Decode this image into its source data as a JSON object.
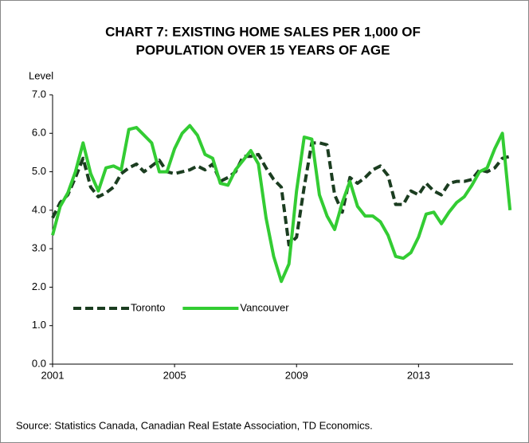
{
  "chart_data": {
    "type": "line",
    "title": [
      "CHART 7: EXISTING HOME SALES PER 1,000 OF",
      "POPULATION OVER 15 YEARS OF AGE"
    ],
    "ylabel": "Level",
    "source": "Source: Statistics Canada, Canadian Real Estate Association, TD Economics.",
    "x": [
      2001,
      2001.25,
      2001.5,
      2001.75,
      2002,
      2002.25,
      2002.5,
      2002.75,
      2003,
      2003.25,
      2003.5,
      2003.75,
      2004,
      2004.25,
      2004.5,
      2004.75,
      2005,
      2005.25,
      2005.5,
      2005.75,
      2006,
      2006.25,
      2006.5,
      2006.75,
      2007,
      2007.25,
      2007.5,
      2007.75,
      2008,
      2008.25,
      2008.5,
      2008.75,
      2009,
      2009.25,
      2009.5,
      2009.75,
      2010,
      2010.25,
      2010.5,
      2010.75,
      2011,
      2011.25,
      2011.5,
      2011.75,
      2012,
      2012.25,
      2012.5,
      2012.75,
      2013,
      2013.25,
      2013.5,
      2013.75,
      2014,
      2014.25,
      2014.5,
      2014.75,
      2015,
      2015.25,
      2015.5,
      2015.75,
      2016
    ],
    "series": [
      {
        "name": "Toronto",
        "color": "#1b3d20",
        "dash": true,
        "values": [
          3.8,
          4.2,
          4.4,
          4.85,
          5.35,
          4.6,
          4.35,
          4.45,
          4.6,
          4.95,
          5.1,
          5.2,
          5.0,
          5.15,
          5.3,
          5.0,
          4.95,
          5.0,
          5.05,
          5.15,
          5.05,
          5.2,
          4.75,
          4.85,
          5.0,
          5.4,
          5.4,
          5.45,
          5.1,
          4.8,
          4.6,
          3.1,
          3.3,
          4.6,
          5.75,
          5.75,
          5.7,
          4.4,
          3.95,
          4.85,
          4.7,
          4.85,
          5.05,
          5.15,
          4.9,
          4.15,
          4.15,
          4.5,
          4.4,
          4.7,
          4.5,
          4.4,
          4.7,
          4.75,
          4.75,
          4.8,
          5.05,
          5.0,
          5.1,
          5.35,
          5.4
        ]
      },
      {
        "name": "Vancouver",
        "color": "#33cc33",
        "dash": false,
        "values": [
          3.35,
          4.1,
          4.45,
          5.0,
          5.75,
          4.95,
          4.5,
          5.1,
          5.15,
          5.05,
          6.1,
          6.15,
          5.95,
          5.75,
          5.0,
          5.0,
          5.6,
          6.0,
          6.2,
          5.95,
          5.45,
          5.35,
          4.7,
          4.65,
          5.05,
          5.3,
          5.55,
          5.2,
          3.8,
          2.8,
          2.15,
          2.6,
          4.5,
          5.9,
          5.85,
          4.4,
          3.85,
          3.5,
          4.2,
          4.75,
          4.1,
          3.85,
          3.85,
          3.7,
          3.35,
          2.8,
          2.75,
          2.9,
          3.3,
          3.9,
          3.95,
          3.65,
          3.95,
          4.2,
          4.35,
          4.65,
          5.0,
          5.1,
          5.6,
          6.0,
          4.0
        ]
      }
    ],
    "xlim": [
      2001,
      2016.1
    ],
    "xticks": [
      2001,
      2005,
      2009,
      2013
    ],
    "ylim": [
      0,
      7
    ],
    "yticks": [
      {
        "value": 0,
        "label": "0.0"
      },
      {
        "value": 1,
        "label": "1.0"
      },
      {
        "value": 2,
        "label": "2.0"
      },
      {
        "value": 3,
        "label": "3.0"
      },
      {
        "value": 4,
        "label": "4.0"
      },
      {
        "value": 5,
        "label": "5.0"
      },
      {
        "value": 6,
        "label": "6.0"
      },
      {
        "value": 7,
        "label": "7.0"
      }
    ],
    "legend": "lower left"
  }
}
